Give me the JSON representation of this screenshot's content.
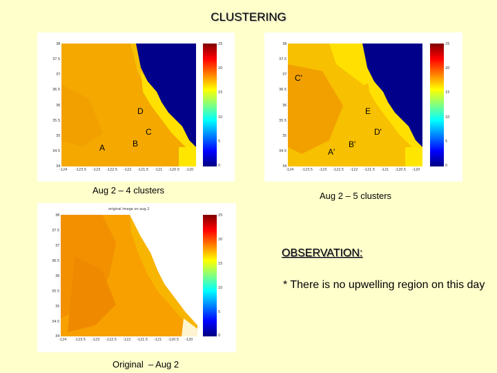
{
  "title": "CLUSTERING",
  "panels": {
    "top_left": {
      "caption": "Aug 2 – 4 clusters",
      "regions": [
        "D",
        "C",
        "A",
        "B"
      ]
    },
    "top_right": {
      "caption": "Aug 2 – 5 clusters",
      "regions": [
        "C'",
        "E",
        "D'",
        "A'",
        "B'"
      ]
    },
    "bottom_left": {
      "caption": "Original  – Aug 2",
      "plot_title": "original image on aug 2"
    },
    "colorbar_ticks": [
      "25",
      "20",
      "15",
      "10",
      "5",
      "0"
    ],
    "x_ticks": [
      "-124",
      "-123.5",
      "-123",
      "-122.5",
      "-122",
      "-121.5",
      "-121",
      "-120.5",
      "-120"
    ],
    "y_ticks": [
      "38",
      "37.5",
      "37",
      "36.5",
      "36",
      "35.5",
      "35",
      "34.5",
      "34"
    ]
  },
  "observation": {
    "heading": "OBSERVATION:",
    "text": "* There is no upwelling region on this day"
  },
  "colors": {
    "background": "#ffffcc",
    "ocean_deep": "#00008b",
    "land_warm": "#f5b800"
  }
}
